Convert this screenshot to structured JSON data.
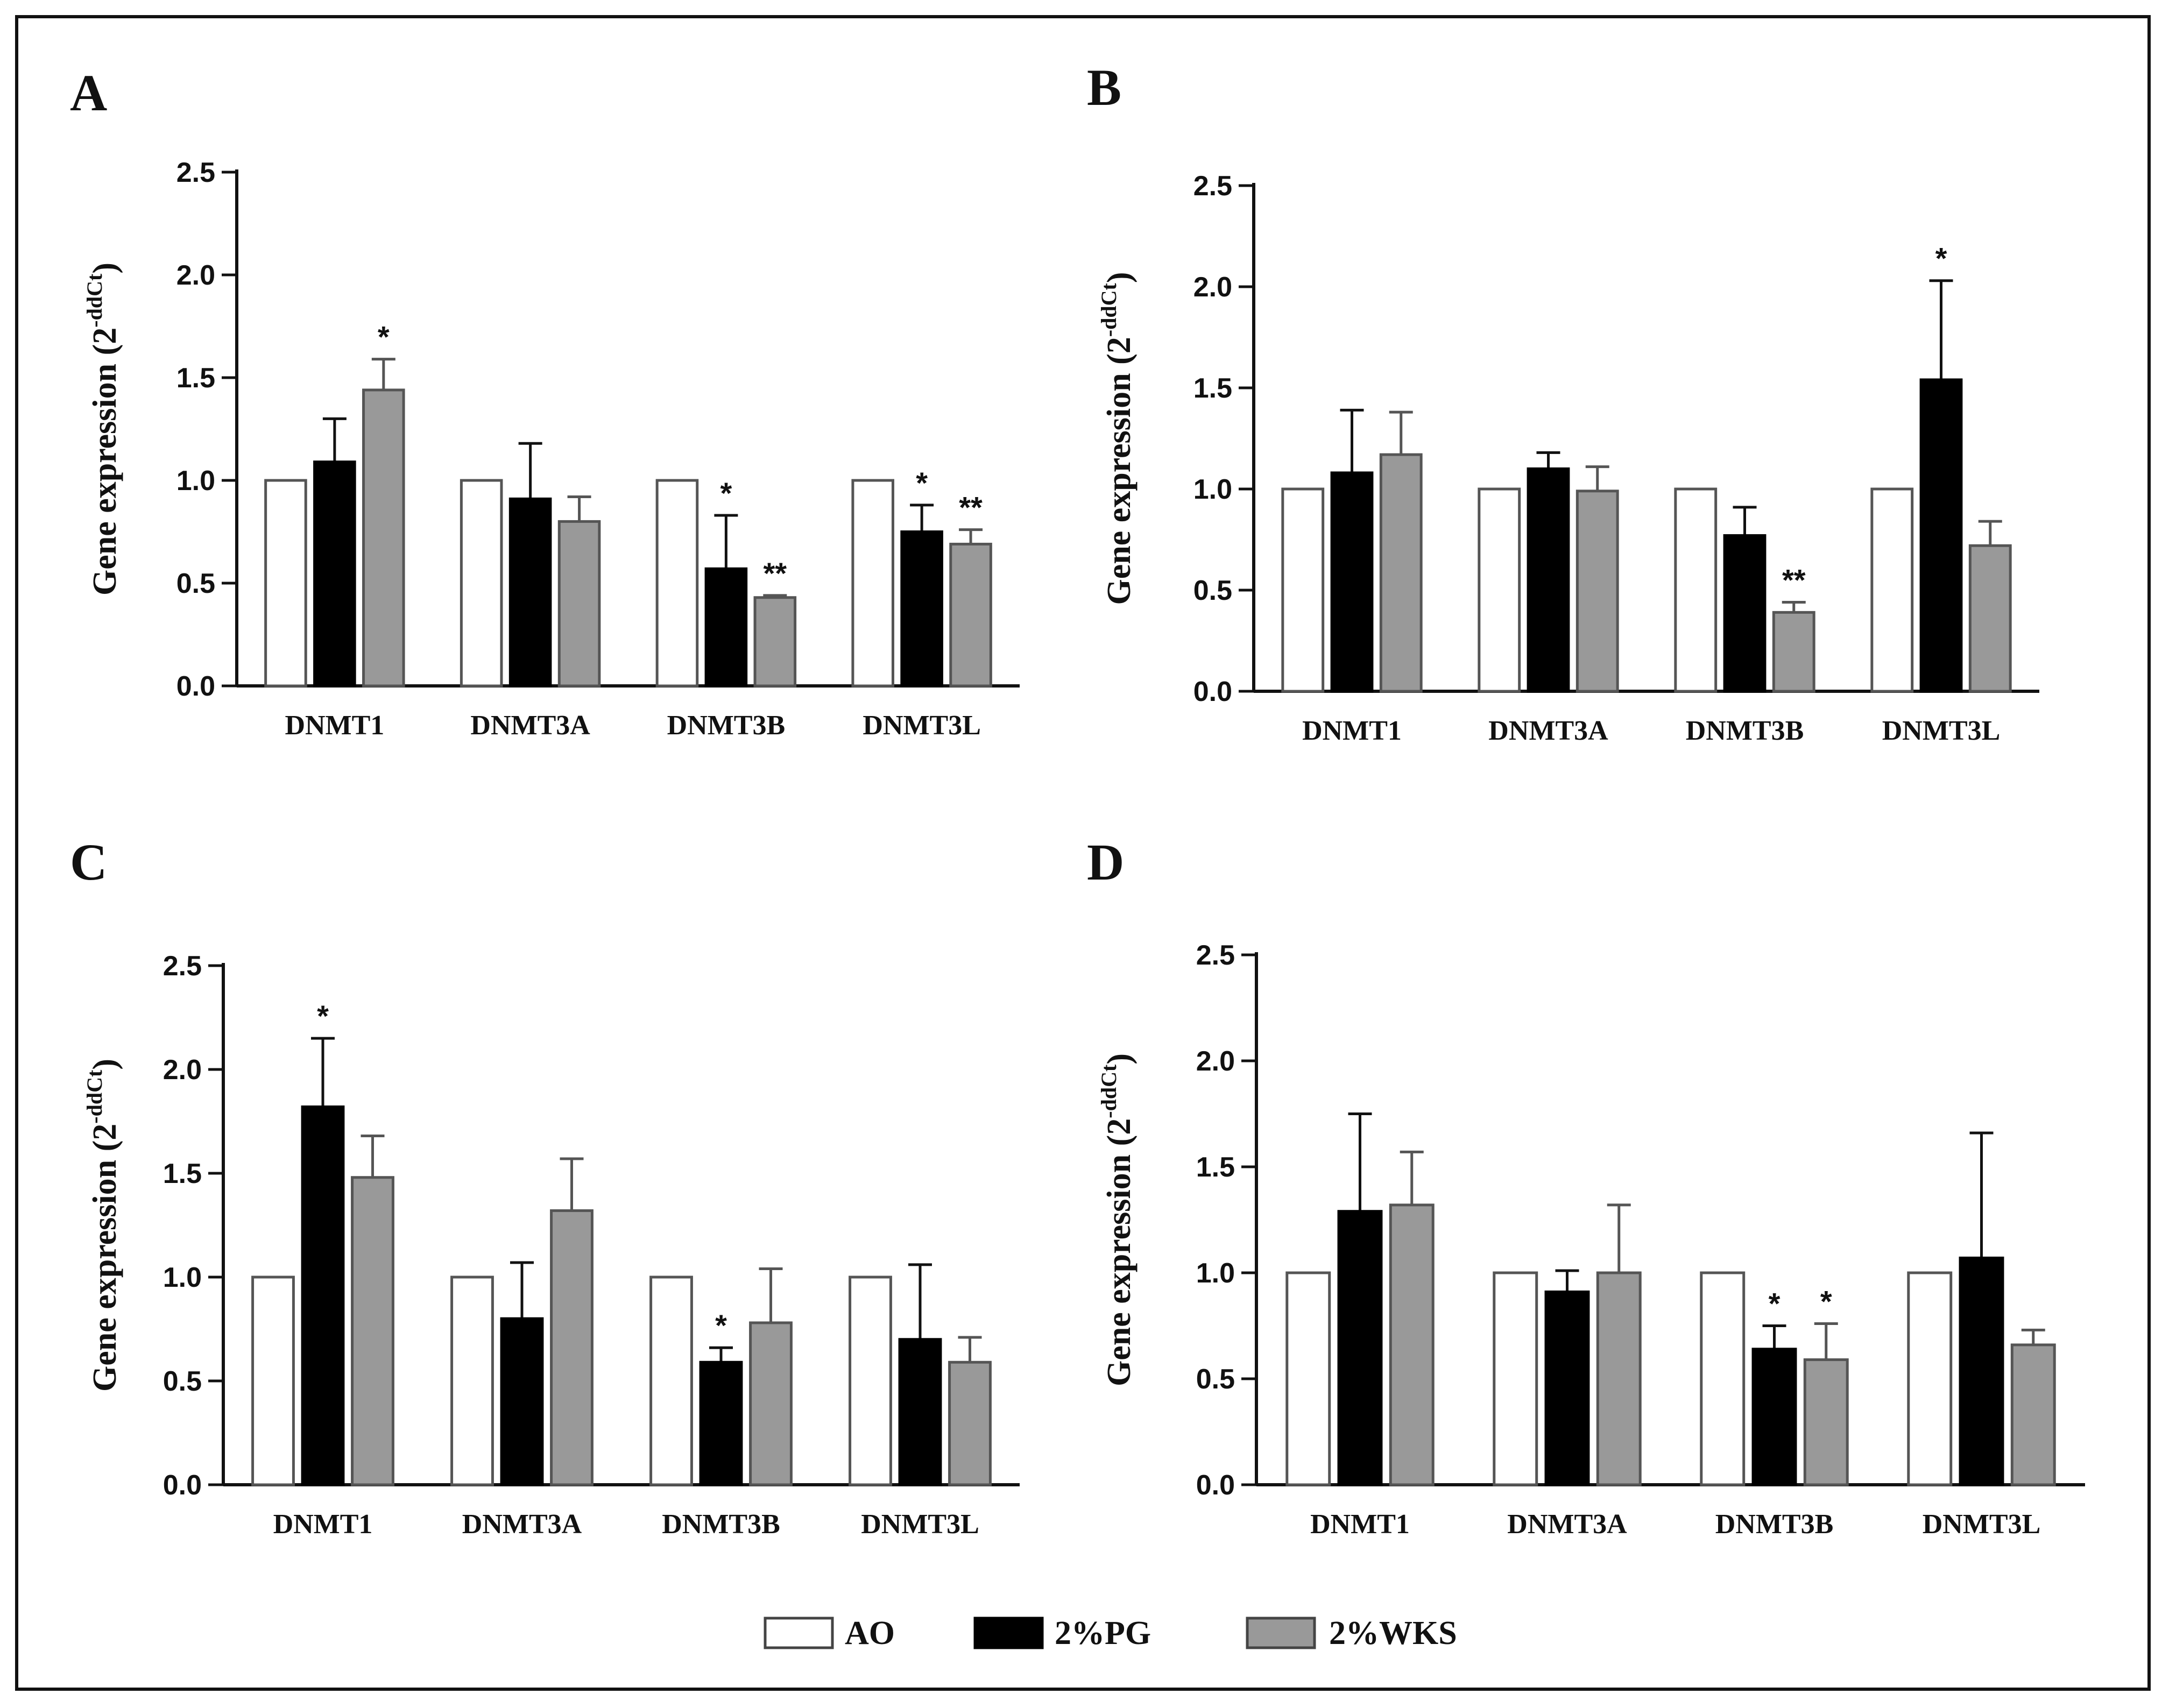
{
  "chart_data": [
    {
      "panel": "A",
      "type": "bar",
      "categories": [
        "DNMT1",
        "DNMT3A",
        "DNMT3B",
        "DNMT3L"
      ],
      "ylabel_main": "Gene expression (2",
      "ylabel_sup": "-ddCt",
      "ylabel_close": ")",
      "ylim": [
        0,
        2.5
      ],
      "yticks": [
        "0.0",
        "0.5",
        "1.0",
        "1.5",
        "2.0",
        "2.5"
      ],
      "series": [
        {
          "name": "AO",
          "values": [
            1.0,
            1.0,
            1.0,
            1.0
          ],
          "errors": [
            0,
            0,
            0,
            0
          ],
          "sig": [
            "",
            "",
            "",
            ""
          ]
        },
        {
          "name": "2%PG",
          "values": [
            1.09,
            0.91,
            0.57,
            0.75
          ],
          "errors": [
            0.21,
            0.27,
            0.26,
            0.13
          ],
          "sig": [
            "",
            "",
            "*",
            "*"
          ]
        },
        {
          "name": "2%WKS",
          "values": [
            1.44,
            0.8,
            0.43,
            0.69
          ],
          "errors": [
            0.15,
            0.12,
            0.01,
            0.07
          ],
          "sig": [
            "*",
            "",
            "**",
            "**"
          ]
        }
      ]
    },
    {
      "panel": "B",
      "type": "bar",
      "categories": [
        "DNMT1",
        "DNMT3A",
        "DNMT3B",
        "DNMT3L"
      ],
      "ylabel_main": "Gene expression (2",
      "ylabel_sup": "-ddCt",
      "ylabel_close": ")",
      "ylim": [
        0,
        2.5
      ],
      "yticks": [
        "0.0",
        "0.5",
        "1.0",
        "1.5",
        "2.0",
        "2.5"
      ],
      "series": [
        {
          "name": "AO",
          "values": [
            1.0,
            1.0,
            1.0,
            1.0
          ],
          "errors": [
            0,
            0,
            0,
            0
          ],
          "sig": [
            "",
            "",
            "",
            ""
          ]
        },
        {
          "name": "2%PG",
          "values": [
            1.08,
            1.1,
            0.77,
            1.54
          ],
          "errors": [
            0.31,
            0.08,
            0.14,
            0.49
          ],
          "sig": [
            "",
            "",
            "",
            "*"
          ]
        },
        {
          "name": "2%WKS",
          "values": [
            1.17,
            0.99,
            0.39,
            0.72
          ],
          "errors": [
            0.21,
            0.12,
            0.05,
            0.12
          ],
          "sig": [
            "",
            "",
            "**",
            ""
          ]
        }
      ]
    },
    {
      "panel": "C",
      "type": "bar",
      "categories": [
        "DNMT1",
        "DNMT3A",
        "DNMT3B",
        "DNMT3L"
      ],
      "ylabel_main": "Gene expression (2",
      "ylabel_sup": "-ddCt",
      "ylabel_close": ")",
      "ylim": [
        0,
        2.5
      ],
      "yticks": [
        "0.0",
        "0.5",
        "1.0",
        "1.5",
        "2.0",
        "2.5"
      ],
      "series": [
        {
          "name": "AO",
          "values": [
            1.0,
            1.0,
            1.0,
            1.0
          ],
          "errors": [
            0,
            0,
            0,
            0
          ],
          "sig": [
            "",
            "",
            "",
            ""
          ]
        },
        {
          "name": "2%PG",
          "values": [
            1.82,
            0.8,
            0.59,
            0.7
          ],
          "errors": [
            0.33,
            0.27,
            0.07,
            0.36
          ],
          "sig": [
            "*",
            "",
            "*",
            ""
          ]
        },
        {
          "name": "2%WKS",
          "values": [
            1.48,
            1.32,
            0.78,
            0.59
          ],
          "errors": [
            0.2,
            0.25,
            0.26,
            0.12
          ],
          "sig": [
            "",
            "",
            "",
            ""
          ]
        }
      ]
    },
    {
      "panel": "D",
      "type": "bar",
      "categories": [
        "DNMT1",
        "DNMT3A",
        "DNMT3B",
        "DNMT3L"
      ],
      "ylabel_main": "Gene expression (2",
      "ylabel_sup": "-ddCt",
      "ylabel_close": ")",
      "ylim": [
        0,
        2.5
      ],
      "yticks": [
        "0.0",
        "0.5",
        "1.0",
        "1.5",
        "2.0",
        "2.5"
      ],
      "series": [
        {
          "name": "AO",
          "values": [
            1.0,
            1.0,
            1.0,
            1.0
          ],
          "errors": [
            0,
            0,
            0,
            0
          ],
          "sig": [
            "",
            "",
            "",
            ""
          ]
        },
        {
          "name": "2%PG",
          "values": [
            1.29,
            0.91,
            0.64,
            1.07
          ],
          "errors": [
            0.46,
            0.1,
            0.11,
            0.59
          ],
          "sig": [
            "",
            "",
            "*",
            ""
          ]
        },
        {
          "name": "2%WKS",
          "values": [
            1.32,
            1.0,
            0.59,
            0.66
          ],
          "errors": [
            0.25,
            0.32,
            0.17,
            0.07
          ],
          "sig": [
            "",
            "",
            "*",
            ""
          ]
        }
      ]
    }
  ],
  "legend": [
    {
      "label": "AO",
      "color": "#ffffff"
    },
    {
      "label": "2%PG",
      "color": "#000000"
    },
    {
      "label": "2%WKS",
      "color": "#999999"
    }
  ],
  "colors": {
    "ao": "#ffffff",
    "pg": "#000000",
    "wks": "#999999",
    "axis": "#111111"
  }
}
